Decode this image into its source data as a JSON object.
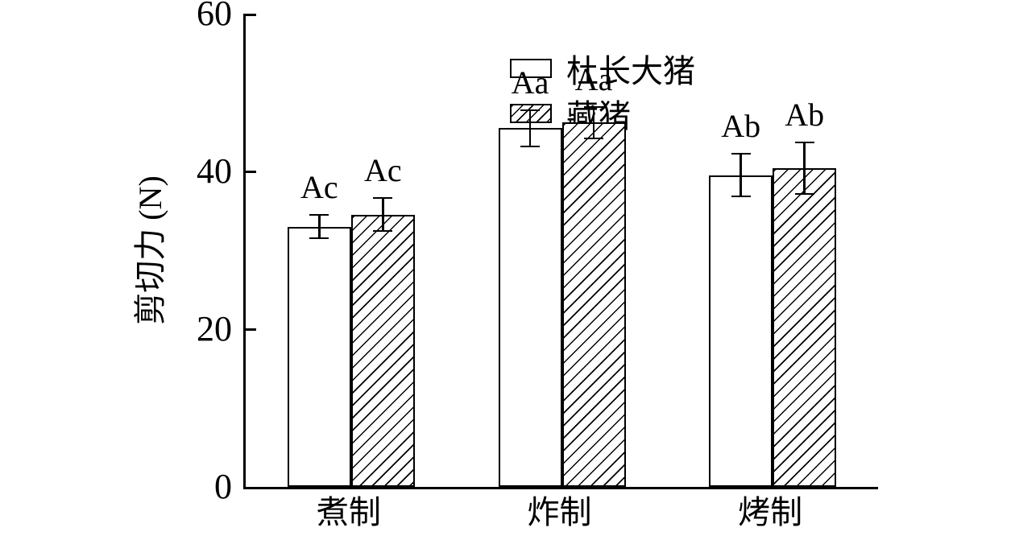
{
  "chart_data": {
    "type": "bar",
    "title": "",
    "xlabel": "",
    "ylabel": "剪切力 (N)",
    "ylim": [
      0,
      60
    ],
    "yticks": [
      0,
      20,
      40,
      60
    ],
    "grid": false,
    "legend_position": "top-left-inside",
    "bar_fill_styles": [
      "plain-white",
      "diagonal-hatch"
    ],
    "line_color": "#000000",
    "background_color": "#ffffff",
    "categories": [
      "煮制",
      "炸制",
      "烤制"
    ],
    "series": [
      {
        "name": "杜长大猪",
        "style": "plain",
        "values": [
          33.0,
          45.5,
          39.5
        ],
        "errors": [
          1.6,
          2.4,
          2.8
        ],
        "sig_labels": [
          "Ac",
          "Aa",
          "Ab"
        ]
      },
      {
        "name": "藏猪",
        "style": "hatched",
        "values": [
          34.5,
          46.2,
          40.4
        ],
        "errors": [
          2.2,
          2.1,
          3.4
        ],
        "sig_labels": [
          "Ac",
          "Aa",
          "Ab"
        ]
      }
    ]
  }
}
